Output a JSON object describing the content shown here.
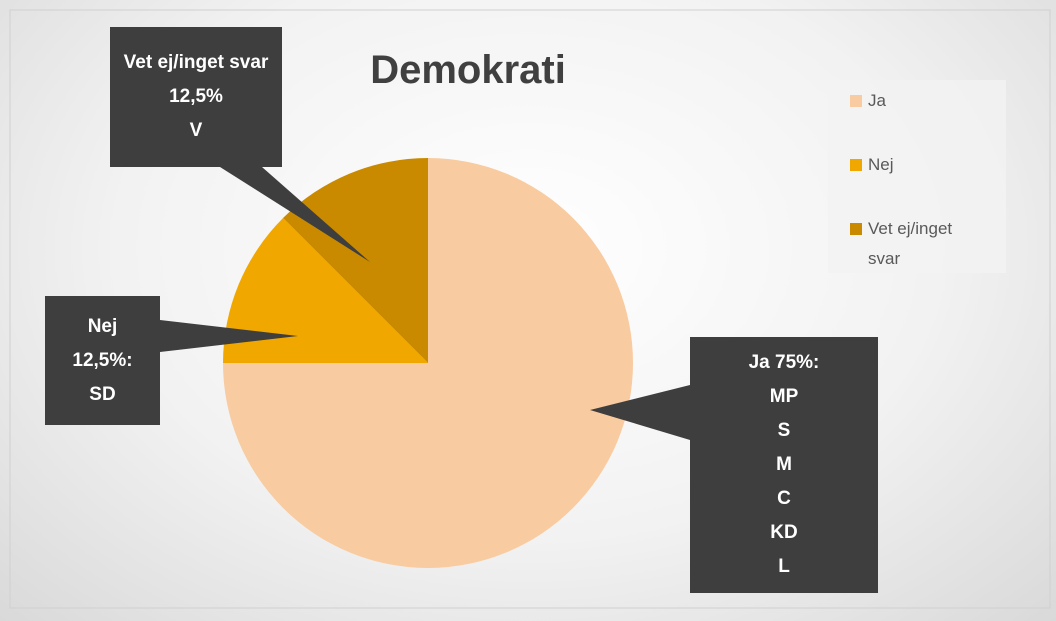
{
  "chart_data": {
    "type": "pie",
    "title": "Demokrati",
    "categories": [
      "Ja",
      "Nej",
      "Vet ej/inget svar"
    ],
    "values": [
      75,
      12.5,
      12.5
    ],
    "value_labels": [
      "Ja 75%:",
      "Nej 12,5%:",
      "Vet ej/inget svar 12,5%"
    ],
    "label_parties": [
      [
        "MP",
        "S",
        "M",
        "C",
        "KD",
        "L"
      ],
      [
        "SD"
      ],
      [
        "V"
      ]
    ],
    "colors": [
      "#f8cba0",
      "#f0a800",
      "#c98a00"
    ],
    "legend": "right"
  }
}
